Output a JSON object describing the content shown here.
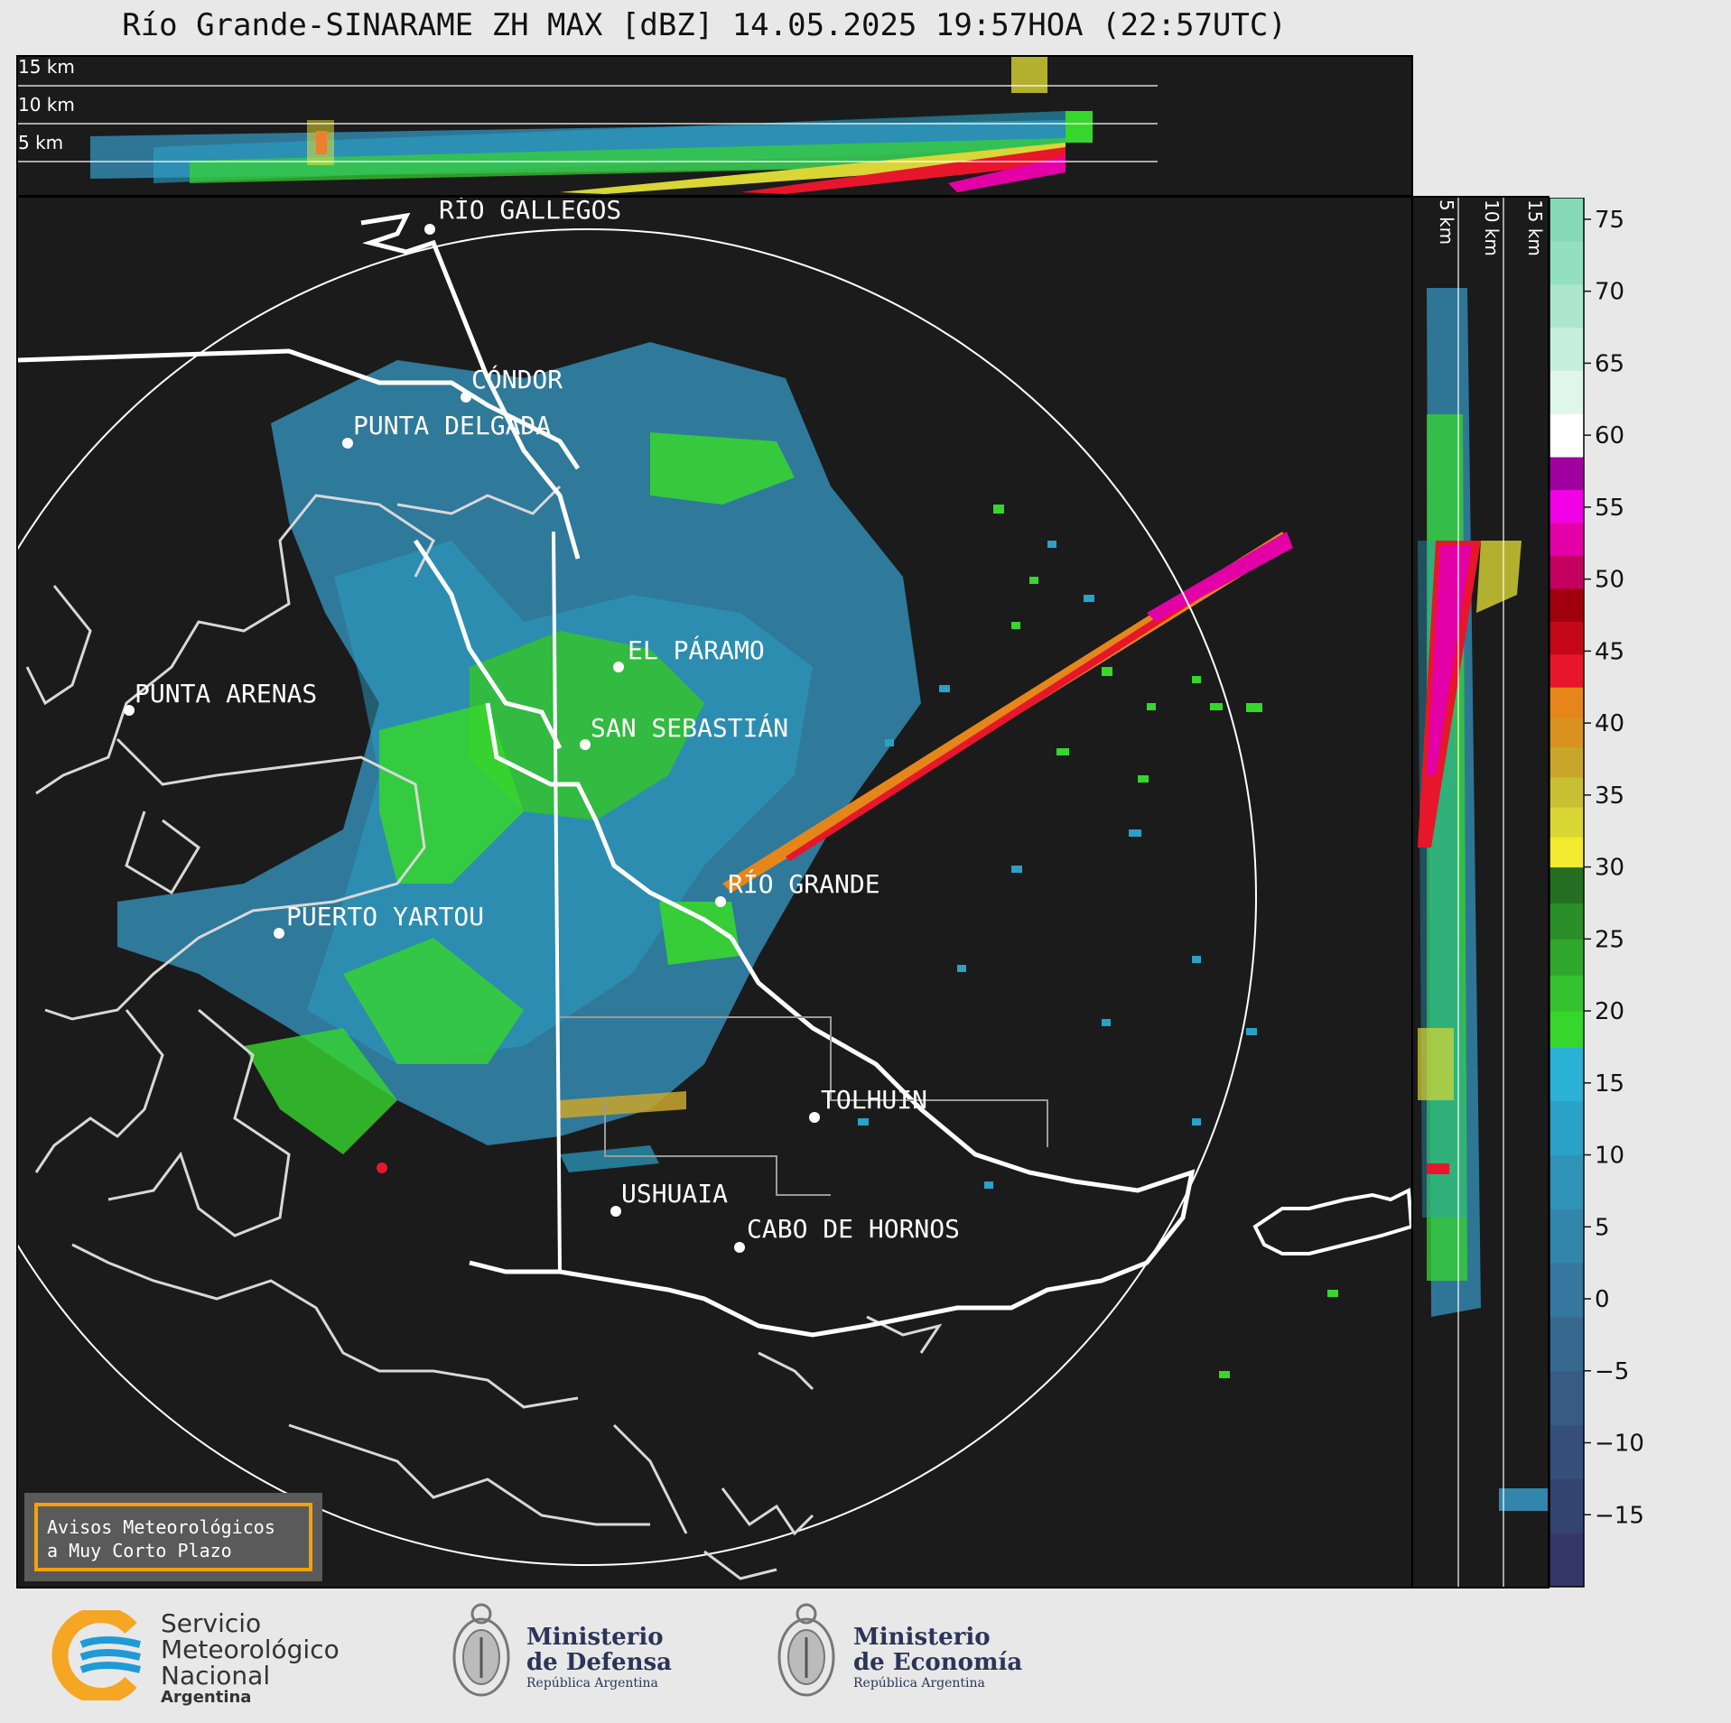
{
  "title": "Río Grande-SINARAME ZH MAX [dBZ] 14.05.2025 19:57HOA (22:57UTC)",
  "top_panel": {
    "levels": [
      "15 km",
      "10 km",
      "5 km"
    ]
  },
  "side_panel": {
    "levels": [
      "5 km",
      "10 km",
      "15 km"
    ]
  },
  "places": [
    {
      "name": "RÍO GALLEGOS"
    },
    {
      "name": "CÓNDOR"
    },
    {
      "name": "PUNTA DELGADA"
    },
    {
      "name": "EL PÁRAMO"
    },
    {
      "name": "PUNTA ARENAS"
    },
    {
      "name": "SAN SEBASTIÁN"
    },
    {
      "name": "RÍO GRANDE"
    },
    {
      "name": "PUERTO YARTOU"
    },
    {
      "name": "TOLHUIN"
    },
    {
      "name": "USHUAIA"
    },
    {
      "name": "CABO DE HORNOS"
    }
  ],
  "colorbar": {
    "unit": "dBZ",
    "ticks": [
      "75",
      "70",
      "65",
      "60",
      "55",
      "50",
      "45",
      "40",
      "35",
      "30",
      "25",
      "20",
      "15",
      "10",
      "5",
      "0",
      "−5",
      "−10",
      "−15"
    ],
    "min": -20,
    "max": 76.5,
    "bands": [
      {
        "from": -20,
        "to": 17.5,
        "colors": [
          "#333866",
          "#344471",
          "#354f7a",
          "#365c85",
          "#376990",
          "#35779e",
          "#3286ac",
          "#2f93b8",
          "#2aa1c6",
          "#2bb0d6"
        ]
      },
      {
        "from": 17.5,
        "to": 30,
        "colors": [
          "#37d62d",
          "#34c22e",
          "#2fa72c",
          "#2a8e29",
          "#246f22"
        ]
      },
      {
        "from": 30,
        "to": 42.5,
        "colors": [
          "#f2ea2f",
          "#d9d635",
          "#c8bf33",
          "#c9a62b",
          "#d99220",
          "#e6861a"
        ]
      },
      {
        "from": 42.5,
        "to": 58.5,
        "colors": [
          "#e8162a",
          "#c4081a",
          "#a0000d",
          "#c30060",
          "#e300a6",
          "#f200e6",
          "#a000a0"
        ]
      },
      {
        "from": 58.5,
        "to": 76.5,
        "colors": [
          "#ffffff",
          "#dff6ec",
          "#c6eedd",
          "#ace6cd",
          "#93dfbf",
          "#85d9b5"
        ]
      }
    ]
  },
  "notice": {
    "line1": "Avisos Meteorológicos",
    "line2": "a Muy Corto Plazo"
  },
  "logos": {
    "smn": {
      "line1": "Servicio",
      "line2": "Meteorológico",
      "line3": "Nacional",
      "line4": "Argentina"
    },
    "defensa": {
      "line1": "Ministerio",
      "line2": "de Defensa",
      "line3": "República Argentina"
    },
    "economia": {
      "line1": "Ministerio",
      "line2": "de Economía",
      "line3": "República Argentina"
    }
  },
  "colors": {
    "background": "#1b1b1b",
    "coast": "#d8d8d8",
    "border": "#ffffff",
    "accent": "#f4a10a"
  }
}
